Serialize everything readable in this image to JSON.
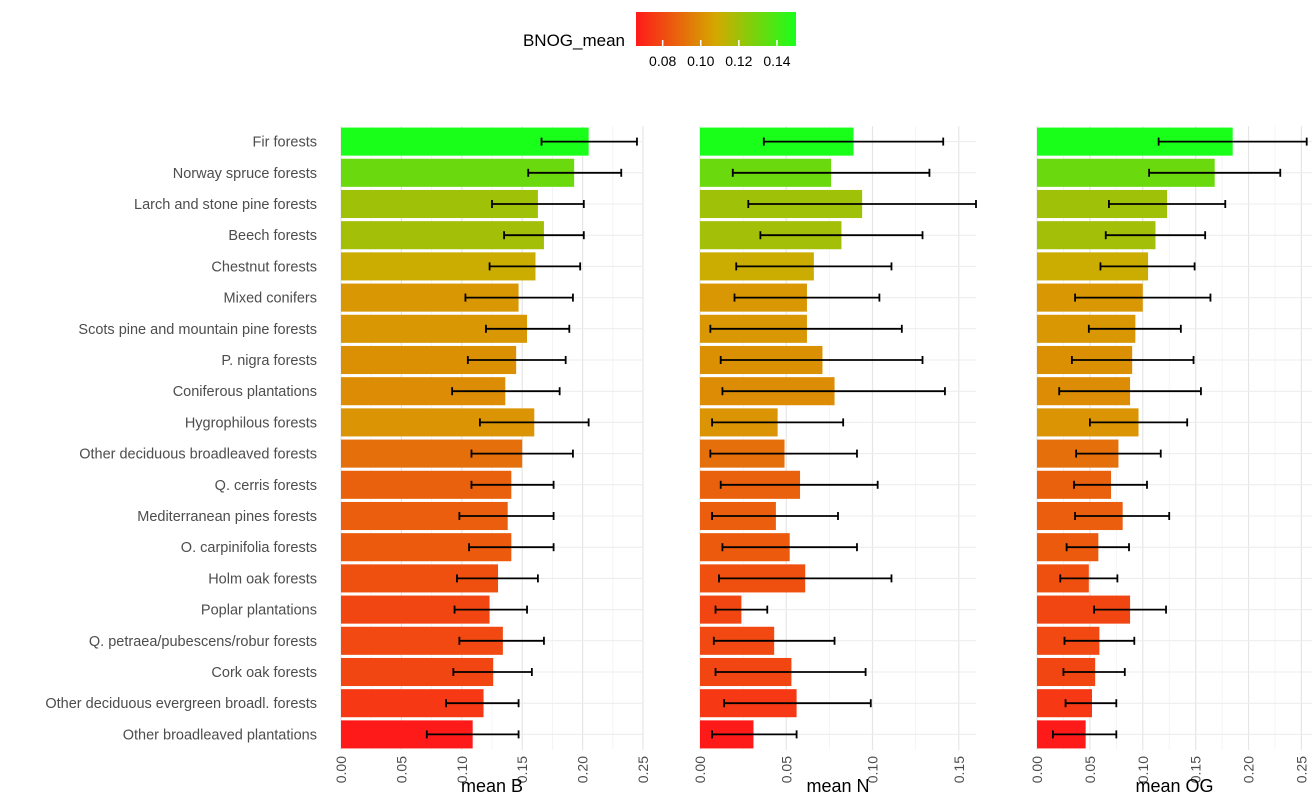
{
  "legend": {
    "title": "BNOG_mean",
    "ticks": [
      "0.08",
      "0.10",
      "0.12",
      "0.14"
    ],
    "tick_values": [
      0.08,
      0.1,
      0.12,
      0.14
    ],
    "range": [
      0.066,
      0.15
    ],
    "colors": [
      "#ff1a1a",
      "#d4a800",
      "#1aff1a"
    ],
    "placement": "top"
  },
  "chart_data": [
    {
      "type": "bar",
      "orientation": "horizontal",
      "xlabel": "mean B",
      "xlim": [
        0,
        0.25
      ],
      "xticks": [
        0.0,
        0.05,
        0.1,
        0.15,
        0.2,
        0.25
      ],
      "xtick_labels": [
        "0.00",
        "0.05",
        "0.10",
        "0.15",
        "0.20",
        "0.25"
      ],
      "grid": true,
      "categories": [
        "Fir forests",
        "Norway spruce forests",
        "Larch and stone pine forests",
        "Beech forests",
        "Chestnut forests",
        "Mixed conifers",
        "Scots pine and mountain pine forests",
        "P. nigra forests",
        "Coniferous plantations",
        "Hygrophilous forests",
        "Other deciduous broadleaved forests",
        "Q. cerris forests",
        "Mediterranean pines forests",
        "O. carpinifolia forests",
        "Holm oak forests",
        "Poplar plantations",
        "Q. petraea/pubescens/robur forests",
        "Cork oak forests",
        "Other deciduous evergreen broadl. forests",
        "Other broadleaved plantations"
      ],
      "values": [
        0.205,
        0.193,
        0.163,
        0.168,
        0.161,
        0.147,
        0.154,
        0.145,
        0.136,
        0.16,
        0.15,
        0.141,
        0.138,
        0.141,
        0.13,
        0.123,
        0.134,
        0.126,
        0.118,
        0.109
      ],
      "error_low": [
        0.166,
        0.155,
        0.125,
        0.135,
        0.123,
        0.103,
        0.12,
        0.105,
        0.092,
        0.115,
        0.108,
        0.108,
        0.098,
        0.106,
        0.096,
        0.094,
        0.098,
        0.093,
        0.087,
        0.071
      ],
      "error_high": [
        0.245,
        0.232,
        0.201,
        0.201,
        0.198,
        0.192,
        0.189,
        0.186,
        0.181,
        0.205,
        0.192,
        0.176,
        0.176,
        0.176,
        0.163,
        0.154,
        0.168,
        0.158,
        0.147,
        0.147
      ],
      "color_values": [
        0.15,
        0.132,
        0.12,
        0.119,
        0.11,
        0.103,
        0.103,
        0.101,
        0.1,
        0.102,
        0.091,
        0.087,
        0.086,
        0.085,
        0.082,
        0.079,
        0.08,
        0.079,
        0.075,
        0.066
      ]
    },
    {
      "type": "bar",
      "orientation": "horizontal",
      "xlabel": "mean N",
      "xlim": [
        0,
        0.16
      ],
      "xticks": [
        0.0,
        0.05,
        0.1,
        0.15
      ],
      "xtick_labels": [
        "0.00",
        "0.05",
        "0.10",
        "0.15"
      ],
      "grid": true,
      "values": [
        0.089,
        0.076,
        0.094,
        0.082,
        0.066,
        0.062,
        0.062,
        0.071,
        0.078,
        0.045,
        0.049,
        0.058,
        0.044,
        0.052,
        0.061,
        0.024,
        0.043,
        0.053,
        0.056,
        0.031
      ],
      "error_low": [
        0.037,
        0.019,
        0.028,
        0.035,
        0.021,
        0.02,
        0.006,
        0.012,
        0.013,
        0.007,
        0.006,
        0.012,
        0.007,
        0.013,
        0.011,
        0.009,
        0.008,
        0.009,
        0.014,
        0.007
      ],
      "error_high": [
        0.141,
        0.133,
        0.16,
        0.129,
        0.111,
        0.104,
        0.117,
        0.129,
        0.142,
        0.083,
        0.091,
        0.103,
        0.08,
        0.091,
        0.111,
        0.039,
        0.078,
        0.096,
        0.099,
        0.056
      ]
    },
    {
      "type": "bar",
      "orientation": "horizontal",
      "xlabel": "mean OG",
      "xlim": [
        0,
        0.26
      ],
      "xticks": [
        0.0,
        0.05,
        0.1,
        0.15,
        0.2,
        0.25
      ],
      "xtick_labels": [
        "0.00",
        "0.05",
        "0.10",
        "0.15",
        "0.20",
        "0.25"
      ],
      "grid": true,
      "values": [
        0.185,
        0.168,
        0.123,
        0.112,
        0.105,
        0.1,
        0.093,
        0.09,
        0.088,
        0.096,
        0.077,
        0.07,
        0.081,
        0.058,
        0.049,
        0.088,
        0.059,
        0.055,
        0.052,
        0.046
      ],
      "error_low": [
        0.115,
        0.106,
        0.068,
        0.065,
        0.06,
        0.036,
        0.049,
        0.033,
        0.021,
        0.05,
        0.037,
        0.035,
        0.036,
        0.028,
        0.022,
        0.054,
        0.026,
        0.025,
        0.027,
        0.015
      ],
      "error_high": [
        0.255,
        0.23,
        0.178,
        0.159,
        0.149,
        0.164,
        0.136,
        0.148,
        0.155,
        0.142,
        0.117,
        0.104,
        0.125,
        0.087,
        0.076,
        0.122,
        0.092,
        0.083,
        0.075,
        0.075
      ]
    }
  ]
}
